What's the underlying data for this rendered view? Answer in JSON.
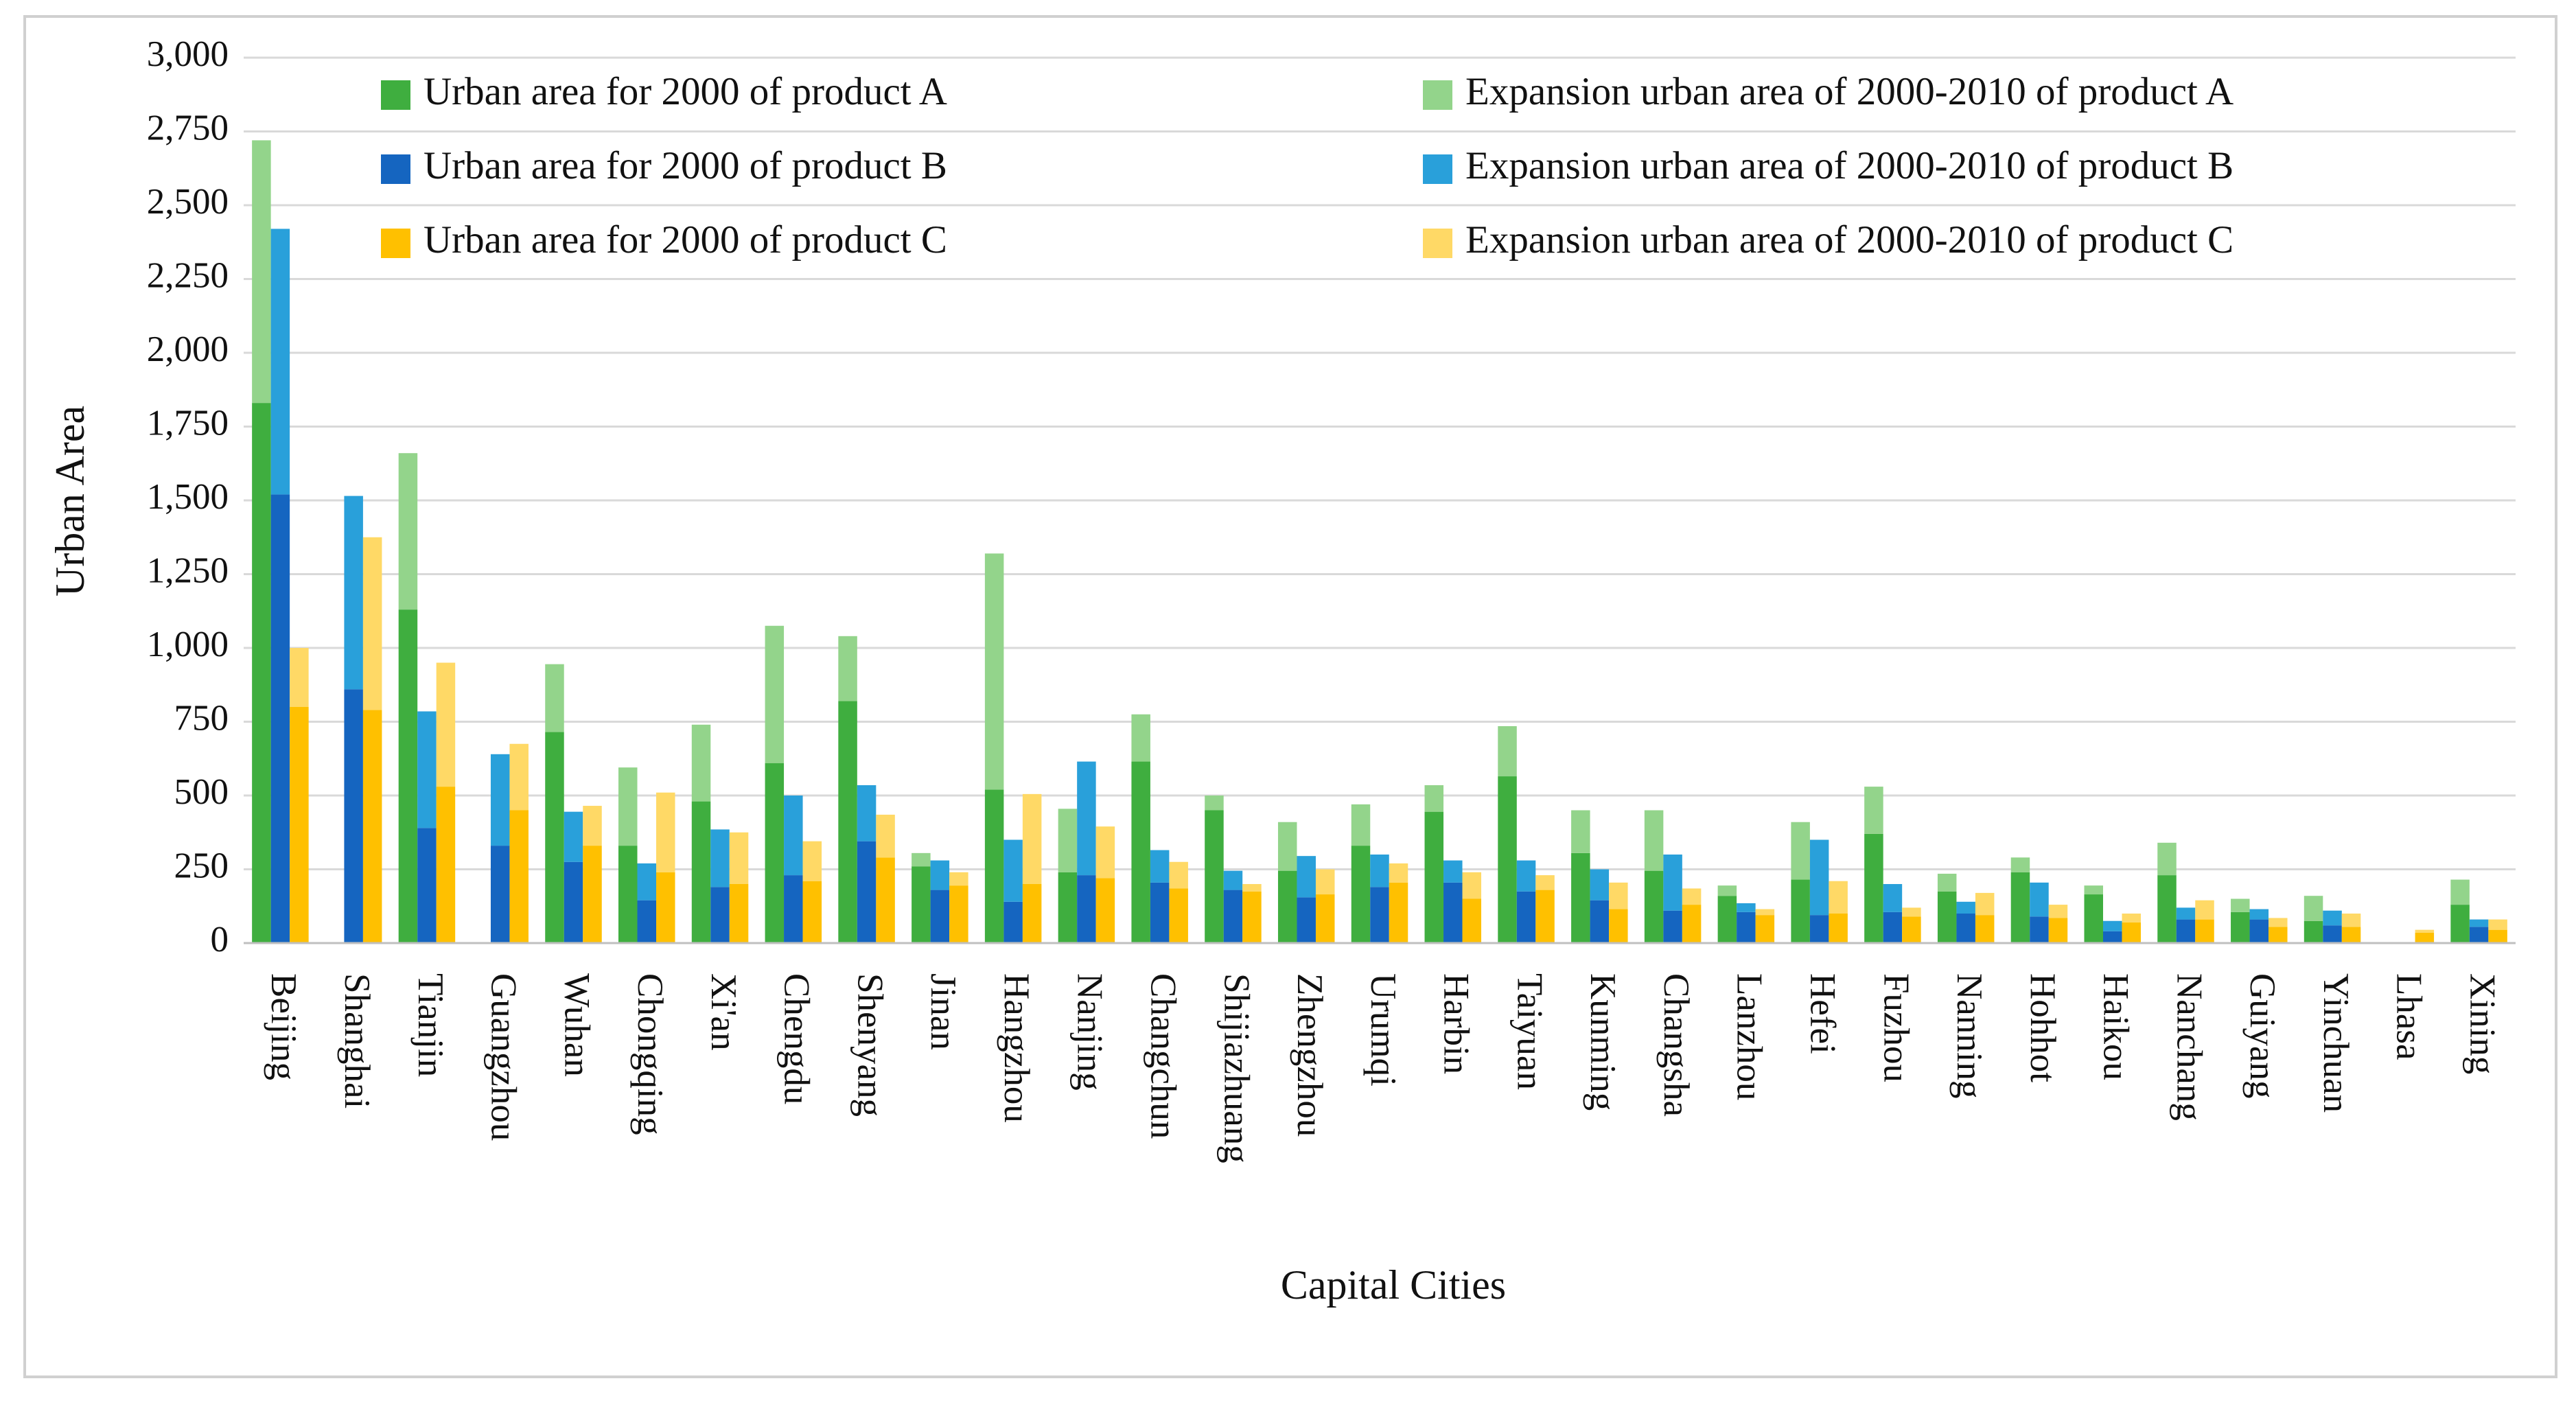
{
  "chart_data": {
    "type": "stacked-grouped-bar",
    "x_label": "Capital Cities",
    "y_label": "Urban Area",
    "categories": [
      "Beijing",
      "Shanghai",
      "Tianjin",
      "Guangzhou",
      "Wuhan",
      "Chongqing",
      "Xi'an",
      "Chengdu",
      "Shenyang",
      "Jinan",
      "Hangzhou",
      "Nanjing",
      "Changchun",
      "Shijiazhuang",
      "Zhengzhou",
      "Urumqi",
      "Harbin",
      "Taiyuan",
      "Kunming",
      "Changsha",
      "Lanzhou",
      "Hefei",
      "Fuzhou",
      "Nanning",
      "Hohhot",
      "Haikou",
      "Nanchang",
      "Guiyang",
      "Yinchuan",
      "Lhasa",
      "Xining"
    ],
    "series": [
      {
        "name": "Urban area for 2000 of product A",
        "color": "#3fae3f",
        "stack": "A",
        "values": [
          1830,
          0,
          1130,
          0,
          715,
          330,
          480,
          610,
          820,
          260,
          520,
          240,
          615,
          450,
          245,
          330,
          445,
          565,
          305,
          245,
          160,
          215,
          370,
          175,
          240,
          165,
          230,
          105,
          75,
          0,
          130
        ]
      },
      {
        "name": "Expansion urban area of 2000-2010 of product A",
        "color": "#93d48b",
        "stack": "A",
        "values": [
          890,
          0,
          530,
          0,
          230,
          265,
          260,
          465,
          220,
          45,
          800,
          215,
          160,
          50,
          165,
          140,
          90,
          170,
          145,
          205,
          35,
          195,
          160,
          60,
          50,
          30,
          110,
          45,
          85,
          0,
          85
        ]
      },
      {
        "name": "Urban area for 2000 of product B",
        "color": "#1565c0",
        "stack": "B",
        "values": [
          1520,
          860,
          390,
          330,
          275,
          145,
          190,
          230,
          345,
          180,
          140,
          230,
          205,
          180,
          155,
          190,
          205,
          175,
          145,
          110,
          105,
          95,
          105,
          100,
          90,
          40,
          80,
          80,
          60,
          0,
          55
        ]
      },
      {
        "name": "Expansion urban area of 2000-2010 of product B",
        "color": "#29a0da",
        "stack": "B",
        "values": [
          900,
          655,
          395,
          310,
          170,
          125,
          195,
          270,
          190,
          100,
          210,
          385,
          110,
          65,
          140,
          110,
          75,
          105,
          105,
          190,
          30,
          255,
          95,
          40,
          115,
          35,
          40,
          35,
          50,
          0,
          25
        ]
      },
      {
        "name": "Urban area for 2000 of product C",
        "color": "#ffc000",
        "stack": "C",
        "values": [
          800,
          790,
          530,
          450,
          330,
          240,
          200,
          210,
          290,
          195,
          200,
          220,
          185,
          175,
          165,
          205,
          150,
          180,
          115,
          130,
          95,
          100,
          90,
          95,
          85,
          70,
          80,
          55,
          55,
          35,
          45
        ]
      },
      {
        "name": "Expansion urban area of 2000-2010 of product C",
        "color": "#ffd966",
        "stack": "C",
        "values": [
          200,
          585,
          420,
          225,
          135,
          270,
          175,
          135,
          145,
          45,
          305,
          175,
          90,
          25,
          85,
          65,
          90,
          50,
          90,
          55,
          20,
          110,
          30,
          75,
          45,
          30,
          65,
          30,
          45,
          10,
          35
        ]
      }
    ],
    "ylim": [
      0,
      3000
    ],
    "yticks": [
      0,
      250,
      500,
      750,
      {
        "value": 1000,
        "label": "1,000"
      },
      {
        "value": 1250,
        "label": "1,250"
      },
      {
        "value": 1500,
        "label": "1,500"
      },
      {
        "value": 1750,
        "label": "1,750"
      },
      {
        "value": 2000,
        "label": "2,000"
      },
      {
        "value": 2250,
        "label": "2,250"
      },
      {
        "value": 2500,
        "label": "2,500"
      },
      {
        "value": 2750,
        "label": "2,750"
      },
      {
        "value": 3000,
        "label": "3,000"
      }
    ],
    "grid": true
  }
}
